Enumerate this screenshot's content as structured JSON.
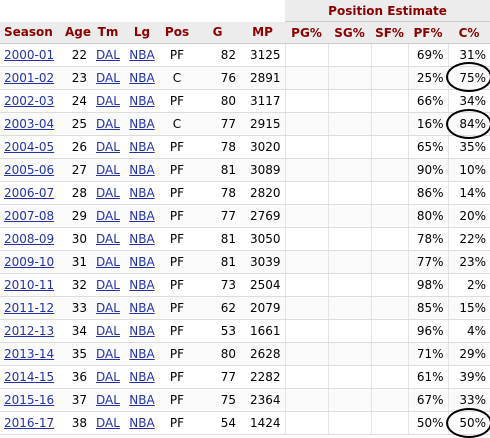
{
  "group_header": "Position Estimate",
  "headers": {
    "season": "Season",
    "age": "Age",
    "tm": "Tm",
    "lg": "Lg",
    "pos": "Pos",
    "g": "G",
    "mp": "MP",
    "pg": "PG%",
    "sg": "SG%",
    "sf": "SF%",
    "pf": "PF%",
    "c": "C%"
  },
  "rows": [
    {
      "season": "2000-01",
      "age": "22",
      "tm": "DAL",
      "lg": "NBA",
      "pos": "PF",
      "g": "82",
      "mp": "3125",
      "pg": "",
      "sg": "",
      "sf": "",
      "pf": "69%",
      "c": "31%"
    },
    {
      "season": "2001-02",
      "age": "23",
      "tm": "DAL",
      "lg": "NBA",
      "pos": "C",
      "g": "76",
      "mp": "2891",
      "pg": "",
      "sg": "",
      "sf": "",
      "pf": "25%",
      "c": "75%"
    },
    {
      "season": "2002-03",
      "age": "24",
      "tm": "DAL",
      "lg": "NBA",
      "pos": "PF",
      "g": "80",
      "mp": "3117",
      "pg": "",
      "sg": "",
      "sf": "",
      "pf": "66%",
      "c": "34%"
    },
    {
      "season": "2003-04",
      "age": "25",
      "tm": "DAL",
      "lg": "NBA",
      "pos": "C",
      "g": "77",
      "mp": "2915",
      "pg": "",
      "sg": "",
      "sf": "",
      "pf": "16%",
      "c": "84%"
    },
    {
      "season": "2004-05",
      "age": "26",
      "tm": "DAL",
      "lg": "NBA",
      "pos": "PF",
      "g": "78",
      "mp": "3020",
      "pg": "",
      "sg": "",
      "sf": "",
      "pf": "65%",
      "c": "35%"
    },
    {
      "season": "2005-06",
      "age": "27",
      "tm": "DAL",
      "lg": "NBA",
      "pos": "PF",
      "g": "81",
      "mp": "3089",
      "pg": "",
      "sg": "",
      "sf": "",
      "pf": "90%",
      "c": "10%"
    },
    {
      "season": "2006-07",
      "age": "28",
      "tm": "DAL",
      "lg": "NBA",
      "pos": "PF",
      "g": "78",
      "mp": "2820",
      "pg": "",
      "sg": "",
      "sf": "",
      "pf": "86%",
      "c": "14%"
    },
    {
      "season": "2007-08",
      "age": "29",
      "tm": "DAL",
      "lg": "NBA",
      "pos": "PF",
      "g": "77",
      "mp": "2769",
      "pg": "",
      "sg": "",
      "sf": "",
      "pf": "80%",
      "c": "20%"
    },
    {
      "season": "2008-09",
      "age": "30",
      "tm": "DAL",
      "lg": "NBA",
      "pos": "PF",
      "g": "81",
      "mp": "3050",
      "pg": "",
      "sg": "",
      "sf": "",
      "pf": "78%",
      "c": "22%"
    },
    {
      "season": "2009-10",
      "age": "31",
      "tm": "DAL",
      "lg": "NBA",
      "pos": "PF",
      "g": "81",
      "mp": "3039",
      "pg": "",
      "sg": "",
      "sf": "",
      "pf": "77%",
      "c": "23%"
    },
    {
      "season": "2010-11",
      "age": "32",
      "tm": "DAL",
      "lg": "NBA",
      "pos": "PF",
      "g": "73",
      "mp": "2504",
      "pg": "",
      "sg": "",
      "sf": "",
      "pf": "98%",
      "c": "2%"
    },
    {
      "season": "2011-12",
      "age": "33",
      "tm": "DAL",
      "lg": "NBA",
      "pos": "PF",
      "g": "62",
      "mp": "2079",
      "pg": "",
      "sg": "",
      "sf": "",
      "pf": "85%",
      "c": "15%"
    },
    {
      "season": "2012-13",
      "age": "34",
      "tm": "DAL",
      "lg": "NBA",
      "pos": "PF",
      "g": "53",
      "mp": "1661",
      "pg": "",
      "sg": "",
      "sf": "",
      "pf": "96%",
      "c": "4%"
    },
    {
      "season": "2013-14",
      "age": "35",
      "tm": "DAL",
      "lg": "NBA",
      "pos": "PF",
      "g": "80",
      "mp": "2628",
      "pg": "",
      "sg": "",
      "sf": "",
      "pf": "71%",
      "c": "29%"
    },
    {
      "season": "2014-15",
      "age": "36",
      "tm": "DAL",
      "lg": "NBA",
      "pos": "PF",
      "g": "77",
      "mp": "2282",
      "pg": "",
      "sg": "",
      "sf": "",
      "pf": "61%",
      "c": "39%"
    },
    {
      "season": "2015-16",
      "age": "37",
      "tm": "DAL",
      "lg": "NBA",
      "pos": "PF",
      "g": "75",
      "mp": "2364",
      "pg": "",
      "sg": "",
      "sf": "",
      "pf": "67%",
      "c": "33%"
    },
    {
      "season": "2016-17",
      "age": "38",
      "tm": "DAL",
      "lg": "NBA",
      "pos": "PF",
      "g": "54",
      "mp": "1424",
      "pg": "",
      "sg": "",
      "sf": "",
      "pf": "50%",
      "c": "50%"
    }
  ],
  "colors": {
    "header_text": "#8b0000",
    "header_bg": "#ececec",
    "link": "#2233aa"
  }
}
